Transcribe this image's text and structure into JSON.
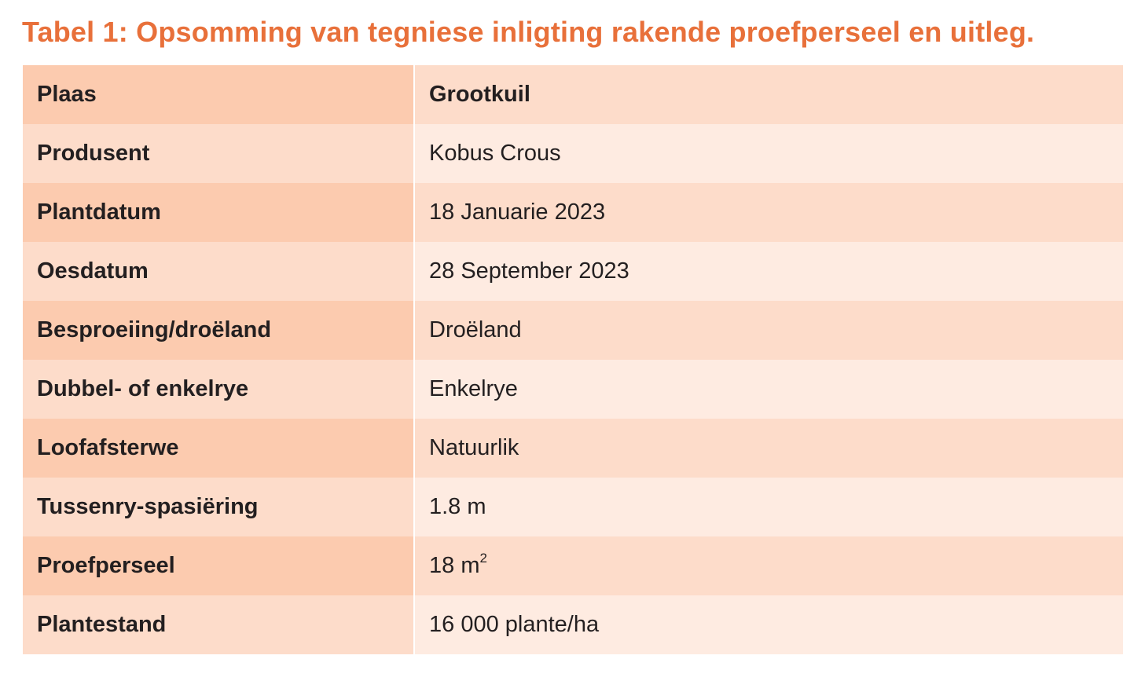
{
  "caption": "Tabel 1: Opsomming van tegniese inligting rakende proefperseel en uitleg.",
  "table": {
    "rows": [
      {
        "label": "Plaas",
        "value": "Grootkuil"
      },
      {
        "label": "Produsent",
        "value": "Kobus Crous"
      },
      {
        "label": "Plantdatum",
        "value": "18 Januarie 2023"
      },
      {
        "label": "Oesdatum",
        "value": "28 September 2023"
      },
      {
        "label": "Besproeiing/droëland",
        "value": "Droëland"
      },
      {
        "label": "Dubbel- of enkelrye",
        "value": "Enkelrye"
      },
      {
        "label": "Loofafsterwe",
        "value": "Natuurlik"
      },
      {
        "label": "Tussenry-spasiëring",
        "value": "1.8 m"
      },
      {
        "label": "Proefperseel",
        "value": "18 m",
        "value_sup": "2"
      },
      {
        "label": "Plantestand",
        "value": "16 000 plante/ha"
      }
    ]
  },
  "colors": {
    "caption": "#e8703a",
    "label_dark": "#fccbaf",
    "mid": "#fddcca",
    "value_light": "#feebe1",
    "text": "#231f20"
  }
}
